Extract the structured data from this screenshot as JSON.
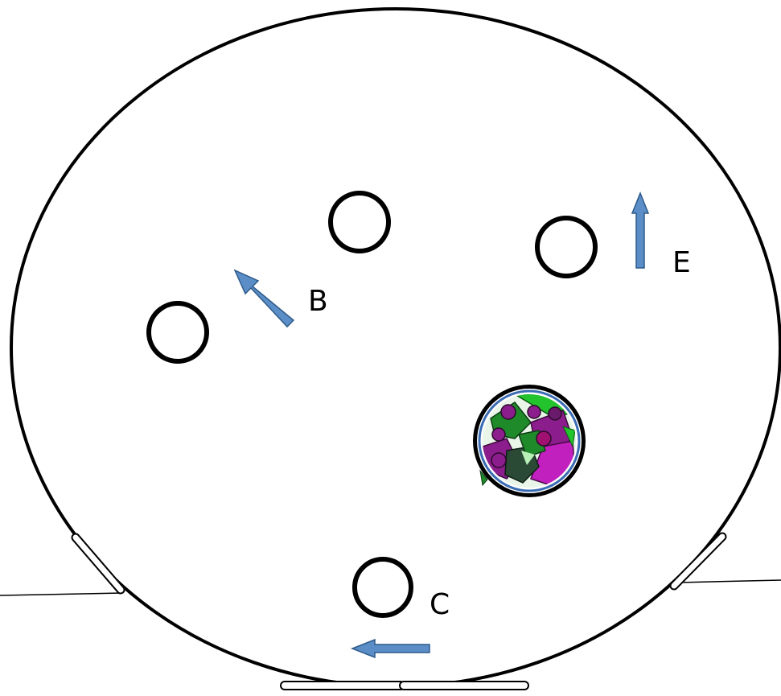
{
  "labels": {
    "b": "B",
    "c": "C",
    "e": "E"
  },
  "colors": {
    "outline": "#000000",
    "arrow_fill": "#5b8ec6",
    "arrow_stroke": "#2e5a8a",
    "flower_ring": "#3a6cb4",
    "flower_purple": "#8c1d8c",
    "flower_magenta": "#c21fbf",
    "flower_green": "#1f8a2a",
    "flower_bright_green": "#22c32c",
    "flower_dark": "#2a4a35"
  },
  "icons": {
    "flower_pot": "flower-cluster-icon",
    "arrow": "arrow-icon"
  }
}
